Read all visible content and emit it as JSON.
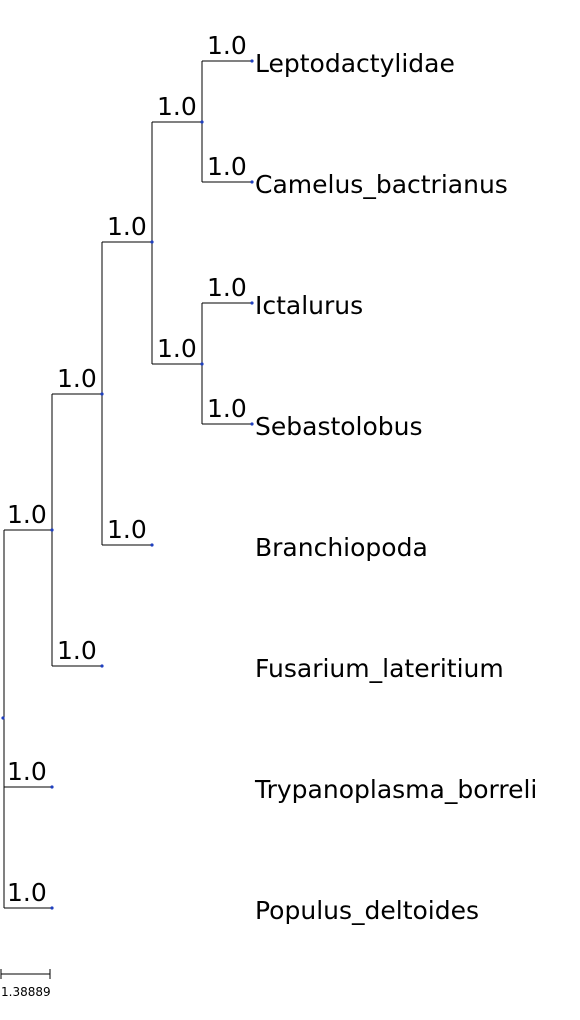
{
  "tree": {
    "taxa": [
      {
        "name": "Leptodactylidae",
        "support": "1.0"
      },
      {
        "name": "Camelus_bactrianus",
        "support": "1.0"
      },
      {
        "name": "Ictalurus",
        "support": "1.0"
      },
      {
        "name": "Sebastolobus",
        "support": "1.0"
      },
      {
        "name": "Branchiopoda",
        "support": "1.0"
      },
      {
        "name": "Fusarium_lateritium",
        "support": "1.0"
      },
      {
        "name": "Trypanoplasma_borreli",
        "support": "1.0"
      },
      {
        "name": "Populus_deltoides",
        "support": "1.0"
      }
    ],
    "internal_supports": [
      "1.0",
      "1.0",
      "1.0",
      "1.0",
      "1.0"
    ],
    "colors": {
      "branch": "#000000",
      "node": "#1f3fbf"
    }
  },
  "scale_bar": {
    "label": "1.38889"
  }
}
